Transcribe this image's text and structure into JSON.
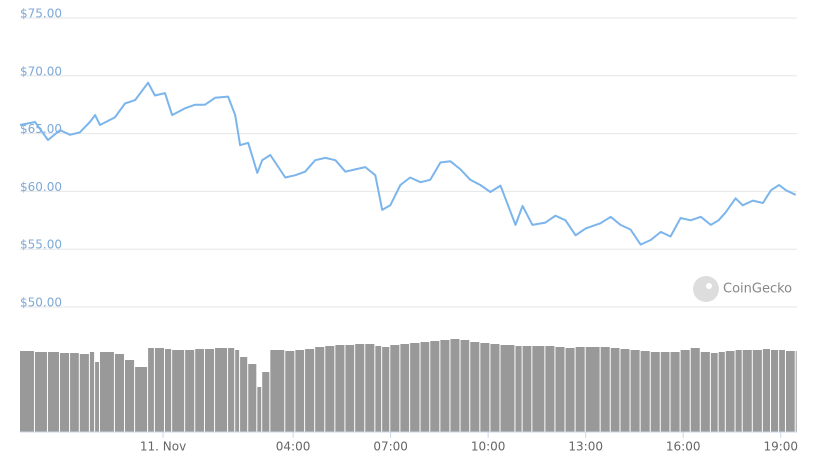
{
  "chart_data": {
    "type": "line",
    "watermark": "CoinGecko",
    "x": [
      -4.4,
      -3.94,
      -3.54,
      -3.17,
      -2.86,
      -2.56,
      -2.25,
      -2.09,
      -1.94,
      -1.48,
      -1.17,
      -0.86,
      -0.46,
      -0.25,
      0.06,
      0.28,
      0.68,
      0.99,
      1.29,
      1.6,
      2.0,
      2.22,
      2.37,
      2.62,
      2.9,
      3.05,
      3.3,
      3.76,
      4.07,
      4.37,
      4.68,
      4.99,
      5.3,
      5.61,
      5.91,
      6.22,
      6.53,
      6.74,
      6.99,
      7.3,
      7.6,
      7.92,
      8.22,
      8.53,
      8.84,
      9.15,
      9.45,
      9.76,
      10.07,
      10.38,
      10.84,
      11.06,
      11.36,
      11.76,
      12.07,
      12.38,
      12.69,
      13.0,
      13.46,
      13.77,
      14.07,
      14.38,
      14.69,
      15.0,
      15.31,
      15.61,
      15.92,
      16.23,
      16.54,
      16.85,
      17.09,
      17.31,
      17.61,
      17.83,
      18.14,
      18.45,
      18.7,
      18.95,
      19.16,
      19.46
    ],
    "series": [
      {
        "color": "#7cb5ec",
        "values": [
          65.74,
          66.0,
          64.45,
          65.3,
          64.9,
          65.1,
          66.0,
          66.6,
          65.74,
          66.4,
          67.6,
          67.9,
          69.4,
          68.3,
          68.5,
          66.6,
          67.2,
          67.5,
          67.5,
          68.1,
          68.2,
          66.6,
          64.0,
          64.2,
          61.6,
          62.7,
          63.15,
          61.2,
          61.4,
          61.7,
          62.7,
          62.9,
          62.7,
          61.7,
          61.9,
          62.1,
          61.4,
          58.4,
          58.8,
          60.55,
          61.2,
          60.8,
          61.0,
          62.5,
          62.6,
          61.9,
          61.0,
          60.55,
          59.95,
          60.5,
          57.1,
          58.75,
          57.1,
          57.3,
          57.9,
          57.5,
          56.2,
          56.8,
          57.25,
          57.8,
          57.1,
          56.7,
          55.4,
          55.8,
          56.5,
          56.1,
          57.7,
          57.5,
          57.8,
          57.1,
          57.5,
          58.2,
          59.4,
          58.8,
          59.2,
          59.0,
          60.1,
          60.55,
          60.1,
          59.7
        ]
      },
      {
        "color": "#999999",
        "values": [
          81,
          80,
          80,
          79,
          79,
          78,
          80,
          70,
          80,
          78,
          72,
          65,
          84,
          84,
          83,
          82,
          82,
          83,
          83,
          84,
          84,
          82,
          75,
          68,
          45,
          60,
          82,
          81,
          82,
          83,
          85,
          86,
          87,
          87,
          88,
          88,
          86,
          85,
          87,
          88,
          89,
          90,
          91,
          92,
          93,
          92,
          90,
          89,
          88,
          87,
          86,
          86,
          86,
          86,
          85,
          84,
          85,
          85,
          85,
          84,
          83,
          82,
          81,
          80,
          80,
          80,
          82,
          84,
          80,
          79,
          80,
          81,
          82,
          82,
          82,
          83,
          82,
          82,
          81,
          81
        ]
      }
    ],
    "xlim": [
      -4.4,
      19.5
    ],
    "xticks": [
      {
        "value": 0,
        "label": "11. Nov"
      },
      {
        "value": 4,
        "label": "04:00"
      },
      {
        "value": 7,
        "label": "07:00"
      },
      {
        "value": 10,
        "label": "10:00"
      },
      {
        "value": 13,
        "label": "13:00"
      },
      {
        "value": 16,
        "label": "16:00"
      },
      {
        "value": 19,
        "label": "19:00"
      }
    ],
    "ylim": [
      50,
      75
    ],
    "yticks": [
      {
        "value": 50,
        "label": "$50.00"
      },
      {
        "value": 55,
        "label": "$55.00"
      },
      {
        "value": 60,
        "label": "$60.00"
      },
      {
        "value": 65,
        "label": "$65.00"
      },
      {
        "value": 70,
        "label": "$70.00"
      },
      {
        "value": 75,
        "label": "$75.00"
      }
    ],
    "grid": true
  }
}
